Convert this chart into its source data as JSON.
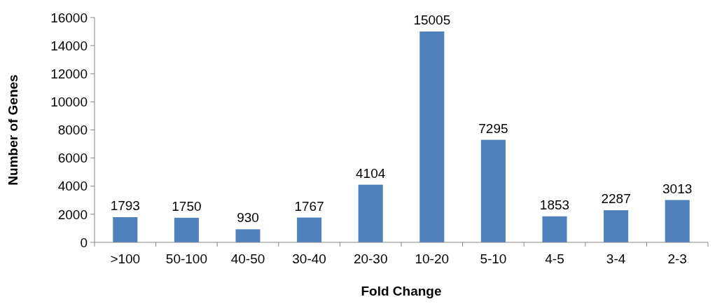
{
  "chart_data": {
    "type": "bar",
    "xlabel": "Fold Change",
    "ylabel": "Number of Genes",
    "categories": [
      ">100",
      "50-100",
      "40-50",
      "30-40",
      "20-30",
      "10-20",
      "5-10",
      "4-5",
      "3-4",
      "2-3"
    ],
    "values": [
      1793,
      1750,
      930,
      1767,
      4104,
      15005,
      7295,
      1853,
      2287,
      3013
    ],
    "color": "#4f81bd",
    "ylim": [
      0,
      16000
    ],
    "yticks": [
      0,
      2000,
      4000,
      6000,
      8000,
      10000,
      12000,
      14000,
      16000
    ],
    "data_labels": true
  }
}
